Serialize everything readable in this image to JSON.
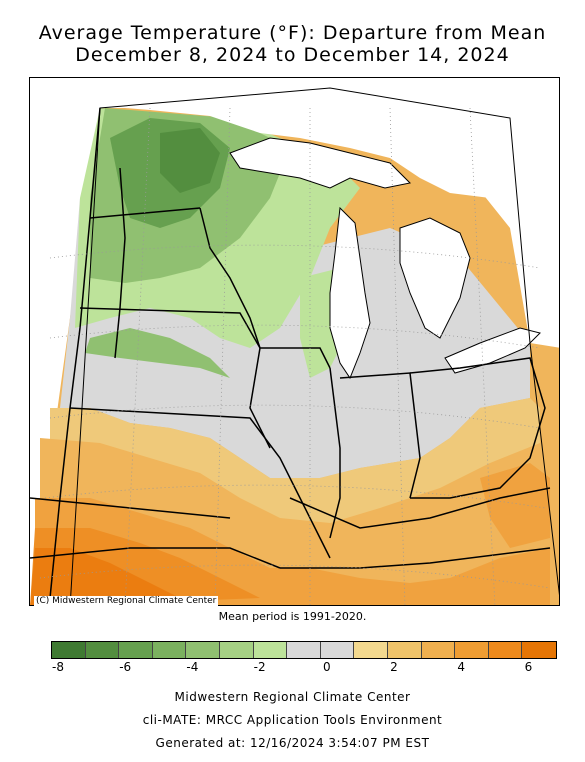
{
  "title": {
    "line1": "Average Temperature (°F): Departure from Mean",
    "line2": "December 8, 2024 to December 14, 2024"
  },
  "map": {
    "copyright": "(C) Midwestern Regional Climate Center",
    "mean_period": "Mean period is 1991-2020.",
    "colors": {
      "neg8": "#3f7a32",
      "neg7": "#538e3f",
      "neg6": "#66a04f",
      "neg5": "#7bb15f",
      "neg4": "#90c071",
      "neg3": "#a6d184",
      "neg2": "#bde39a",
      "zero": "#d9d9d9",
      "pos1": "#efc97a",
      "pos2": "#f0b55b",
      "pos3": "#f0a23f",
      "pos4": "#ee8f25",
      "pos5": "#eb7d10",
      "pos6": "#d86d06",
      "water": "#ffffff"
    }
  },
  "legend": {
    "ticks": [
      "-8",
      "-6",
      "-4",
      "-2",
      "0",
      "2",
      "4",
      "6"
    ],
    "segments": [
      "#3f7a32",
      "#538e3f",
      "#66a04f",
      "#7bb15f",
      "#90c071",
      "#a6d184",
      "#bde39a",
      "#d9d9d9",
      "#d9d9d9",
      "#f3d98f",
      "#f0c46a",
      "#f0b04f",
      "#ef9d33",
      "#ee8a1c",
      "#e57505"
    ]
  },
  "footer": {
    "line1": "Midwestern Regional Climate Center",
    "line2": "cli-MATE: MRCC Application Tools Environment",
    "line3": "Generated at: 12/16/2024 3:54:07 PM EST"
  }
}
